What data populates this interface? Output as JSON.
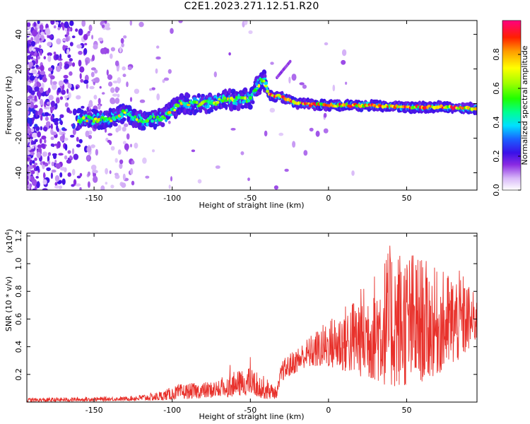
{
  "figure_title": "C2E1.2023.271.12.51.R20",
  "chart_data": [
    {
      "type": "heatmap",
      "xlabel": "Height of straight line (km)",
      "ylabel": "Frequency (Hz)",
      "xlim": [
        -193,
        95
      ],
      "ylim": [
        -50,
        48
      ],
      "x_ticks": [
        -150,
        -100,
        -50,
        0,
        50
      ],
      "y_ticks": [
        -40,
        -20,
        0,
        20,
        40
      ],
      "colorbar": {
        "label": "Normalized spectral amplitude",
        "range": [
          0.0,
          1.0
        ],
        "ticks": [
          0.0,
          0.2,
          0.4,
          0.6,
          0.8
        ],
        "tick_labels": [
          "0.0",
          "0.2",
          "0.4",
          "0.6",
          "0.8"
        ]
      },
      "ridge": {
        "description_points": [
          {
            "x": -155,
            "y": -9
          },
          {
            "x": -140,
            "y": -9
          },
          {
            "x": -130,
            "y": -5
          },
          {
            "x": -120,
            "y": -10
          },
          {
            "x": -105,
            "y": -8
          },
          {
            "x": -95,
            "y": 0
          },
          {
            "x": -80,
            "y": 0
          },
          {
            "x": -65,
            "y": 2
          },
          {
            "x": -50,
            "y": 3
          },
          {
            "x": -42,
            "y": 15
          },
          {
            "x": -38,
            "y": 5
          },
          {
            "x": -30,
            "y": 4
          },
          {
            "x": -20,
            "y": 0
          },
          {
            "x": 0,
            "y": -1
          },
          {
            "x": 25,
            "y": -1
          },
          {
            "x": 50,
            "y": -2
          },
          {
            "x": 75,
            "y": -2
          },
          {
            "x": 95,
            "y": -3
          }
        ]
      }
    },
    {
      "type": "line",
      "xlabel": "Height of straight line (km)",
      "ylabel": "SNR (10 * v/v)",
      "yscale_label": "(x10",
      "yscale_exp": "4",
      "yscale_close": ")",
      "xlim": [
        -193,
        95
      ],
      "ylim": [
        0.0,
        1.22
      ],
      "x_ticks": [
        -150,
        -100,
        -50,
        0,
        50
      ],
      "y_ticks": [
        0.2,
        0.4,
        0.6,
        0.8,
        1.0,
        1.2
      ],
      "y_tick_labels": [
        "0.2",
        "0.4",
        "0.6",
        "0.8",
        "1.0",
        "1.2"
      ],
      "series": [
        {
          "color": "#e8302a",
          "envelope": [
            {
              "x": -193,
              "lo": 0.0,
              "hi": 0.03
            },
            {
              "x": -130,
              "lo": 0.01,
              "hi": 0.04
            },
            {
              "x": -110,
              "lo": 0.01,
              "hi": 0.07
            },
            {
              "x": -95,
              "lo": 0.02,
              "hi": 0.13
            },
            {
              "x": -75,
              "lo": 0.03,
              "hi": 0.15
            },
            {
              "x": -60,
              "lo": 0.04,
              "hi": 0.22
            },
            {
              "x": -50,
              "lo": 0.05,
              "hi": 0.25
            },
            {
              "x": -40,
              "lo": 0.02,
              "hi": 0.18
            },
            {
              "x": -33,
              "lo": 0.03,
              "hi": 0.1
            },
            {
              "x": -30,
              "lo": 0.15,
              "hi": 0.3
            },
            {
              "x": -15,
              "lo": 0.25,
              "hi": 0.45
            },
            {
              "x": 0,
              "lo": 0.25,
              "hi": 0.6
            },
            {
              "x": 15,
              "lo": 0.2,
              "hi": 0.75
            },
            {
              "x": 30,
              "lo": 0.15,
              "hi": 0.95
            },
            {
              "x": 40,
              "lo": 0.1,
              "hi": 1.15
            },
            {
              "x": 55,
              "lo": 0.12,
              "hi": 1.1
            },
            {
              "x": 70,
              "lo": 0.2,
              "hi": 0.95
            },
            {
              "x": 85,
              "lo": 0.3,
              "hi": 0.95
            },
            {
              "x": 95,
              "lo": 0.45,
              "hi": 0.75
            }
          ]
        }
      ]
    }
  ]
}
